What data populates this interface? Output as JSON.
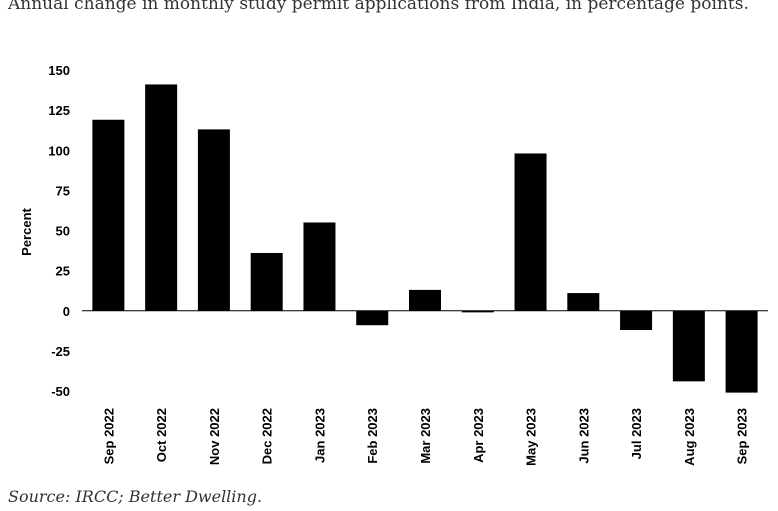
{
  "title": "Annual change in monthly study permit applications from India, in percentage points.",
  "source": "Source: IRCC; Better Dwelling.",
  "chart_data": {
    "type": "bar",
    "title": "Annual change in monthly study permit applications from India, in percentage points.",
    "xlabel": "",
    "ylabel": "Percent",
    "ylim": [
      -50,
      150
    ],
    "yticks": [
      "150",
      "125",
      "100",
      "75",
      "50",
      "25",
      "0",
      "-25",
      "-50"
    ],
    "categories": [
      "Sep 2022",
      "Oct 2022",
      "Nov 2022",
      "Dec 2022",
      "Jan 2023",
      "Feb 2023",
      "Mar 2023",
      "Apr 2023",
      "May 2023",
      "Jun 2023",
      "Jul 2023",
      "Aug 2023",
      "Sep 2023"
    ],
    "values": [
      119,
      141,
      113,
      36,
      55,
      -9,
      13,
      -1,
      98,
      11,
      -12,
      -44,
      -51
    ],
    "bar_color": "#000000",
    "grid": false,
    "legend": "none"
  }
}
